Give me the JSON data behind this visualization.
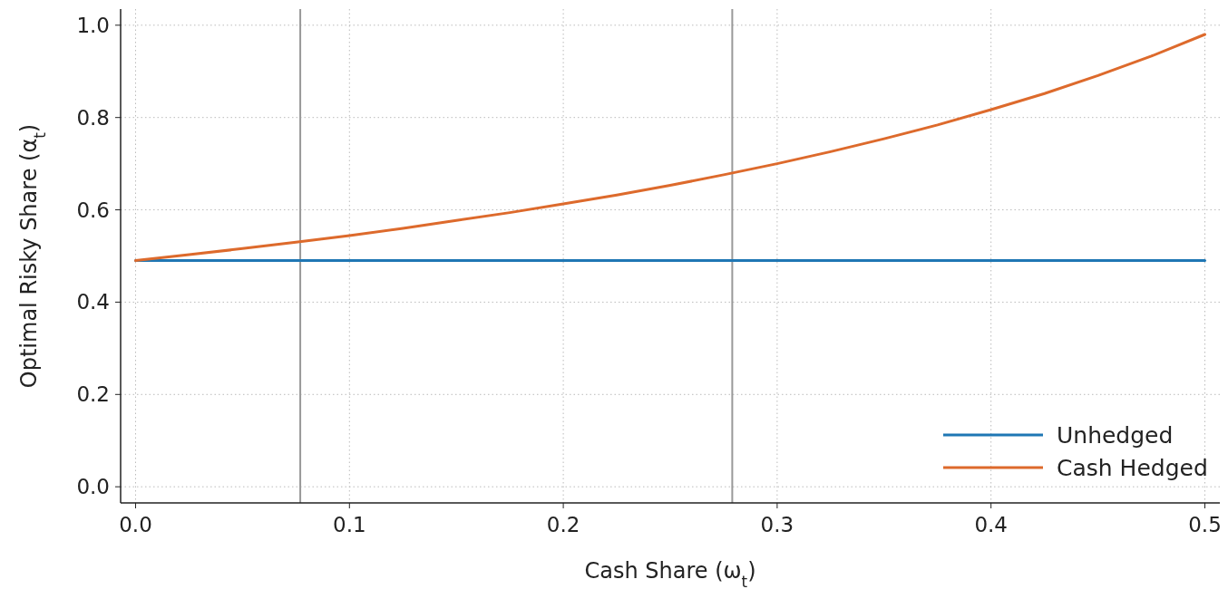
{
  "chart_data": {
    "type": "line",
    "xlabel": "Cash Share (ω$_{t}$)",
    "ylabel": "Optimal Risky Share (α$_{t}$)",
    "x": [
      0,
      0.025,
      0.05,
      0.075,
      0.1,
      0.125,
      0.15,
      0.175,
      0.2,
      0.225,
      0.25,
      0.275,
      0.3,
      0.325,
      0.35,
      0.375,
      0.4,
      0.425,
      0.45,
      0.475,
      0.5
    ],
    "series": [
      {
        "name": "Unhedged",
        "color": "#1f77b4",
        "values": [
          0.49,
          0.49,
          0.49,
          0.49,
          0.49,
          0.49,
          0.49,
          0.49,
          0.49,
          0.49,
          0.49,
          0.49,
          0.49,
          0.49,
          0.49,
          0.49,
          0.49,
          0.49,
          0.49,
          0.49,
          0.49
        ]
      },
      {
        "name": "Cash Hedged",
        "color": "#dd6a2c",
        "values": [
          0.49,
          0.503,
          0.516,
          0.53,
          0.544,
          0.56,
          0.577,
          0.594,
          0.613,
          0.632,
          0.653,
          0.676,
          0.7,
          0.726,
          0.754,
          0.784,
          0.817,
          0.852,
          0.891,
          0.933,
          0.98
        ]
      }
    ],
    "xlim": [
      -0.007,
      0.507
    ],
    "ylim": [
      -0.035,
      1.035
    ],
    "xticks": [
      {
        "value": 0,
        "label": "0.0"
      },
      0.1,
      0.2,
      0.3,
      0.4,
      0.5
    ],
    "yticks": [
      {
        "value": 0,
        "label": "0.0"
      },
      0.2,
      0.4,
      0.6,
      0.8,
      {
        "value": 1,
        "label": "1.0"
      }
    ],
    "ref_lines": [
      {
        "axis": "x",
        "value": 0.077,
        "color": "#999999"
      },
      {
        "axis": "x",
        "value": 0.279,
        "color": "#999999"
      }
    ],
    "grid": true,
    "legend": "bottom right",
    "line_style": "solid",
    "marker": "none"
  }
}
